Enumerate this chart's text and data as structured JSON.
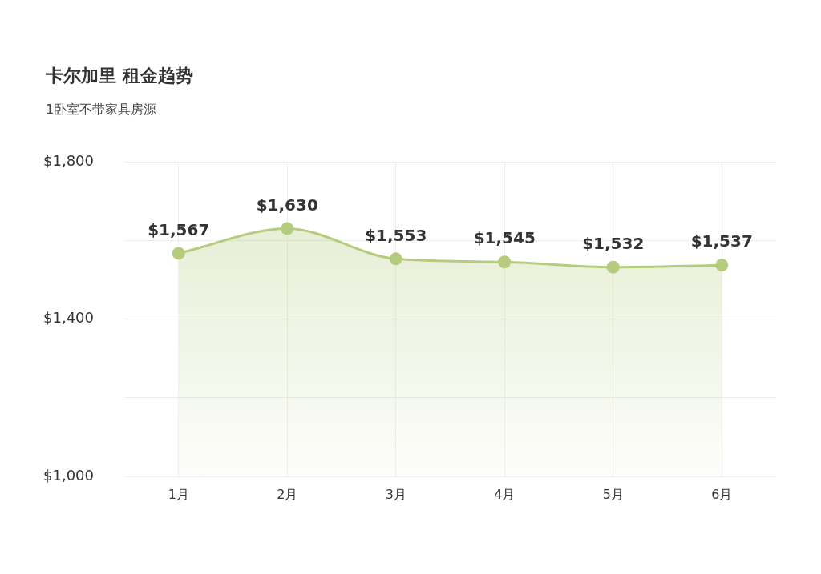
{
  "chart_data": {
    "type": "area",
    "title": "卡尔加里 租金趋势",
    "subtitle": "1卧室不带家具房源",
    "categories": [
      "1月",
      "2月",
      "3月",
      "4月",
      "5月",
      "6月"
    ],
    "series": [
      {
        "color": "#b5cc7e",
        "values": [
          1567,
          1630,
          1553,
          1545,
          1532,
          1537
        ]
      }
    ],
    "ylim": [
      1000,
      1800
    ],
    "yticks": [
      {
        "value": 1000,
        "label": "$1,000"
      },
      {
        "value": 1200,
        "label": null
      },
      {
        "value": 1400,
        "label": "$1,400"
      },
      {
        "value": 1600,
        "label": null
      },
      {
        "value": 1800,
        "label": "$1,800"
      }
    ],
    "value_labels": [
      [
        "$1,567",
        "$1,630",
        "$1,553",
        "$1,545",
        "$1,532",
        "$1,537"
      ]
    ],
    "grid": true,
    "marker": "circle",
    "legend": false
  }
}
